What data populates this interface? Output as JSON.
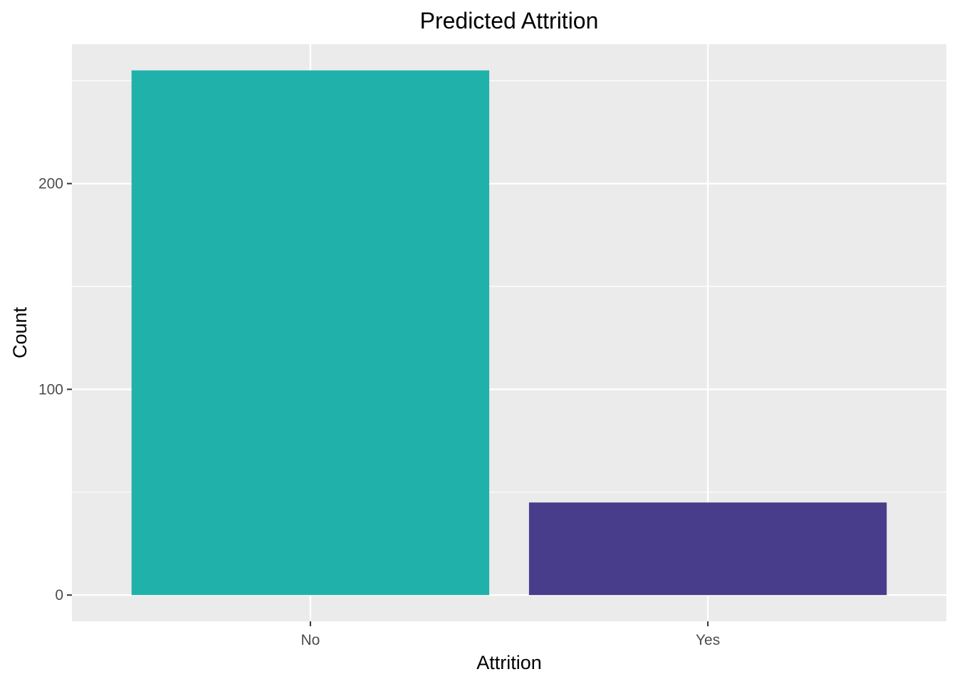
{
  "chart_data": {
    "type": "bar",
    "title": "Predicted Attrition",
    "xlabel": "Attrition",
    "ylabel": "Count",
    "categories": [
      "No",
      "Yes"
    ],
    "values": [
      255,
      45
    ],
    "colors": [
      "#20B2AA",
      "#483D8B"
    ],
    "ylim": [
      -12.75,
      267.75
    ],
    "yticks": [
      0,
      100,
      200
    ],
    "ytick_labels": [
      "0",
      "100",
      "200"
    ],
    "minor_yticks": [
      50,
      150,
      250
    ],
    "grid": true,
    "panel_background": "#EBEBEB",
    "gridline_color": "#FFFFFF",
    "legend": "none"
  }
}
